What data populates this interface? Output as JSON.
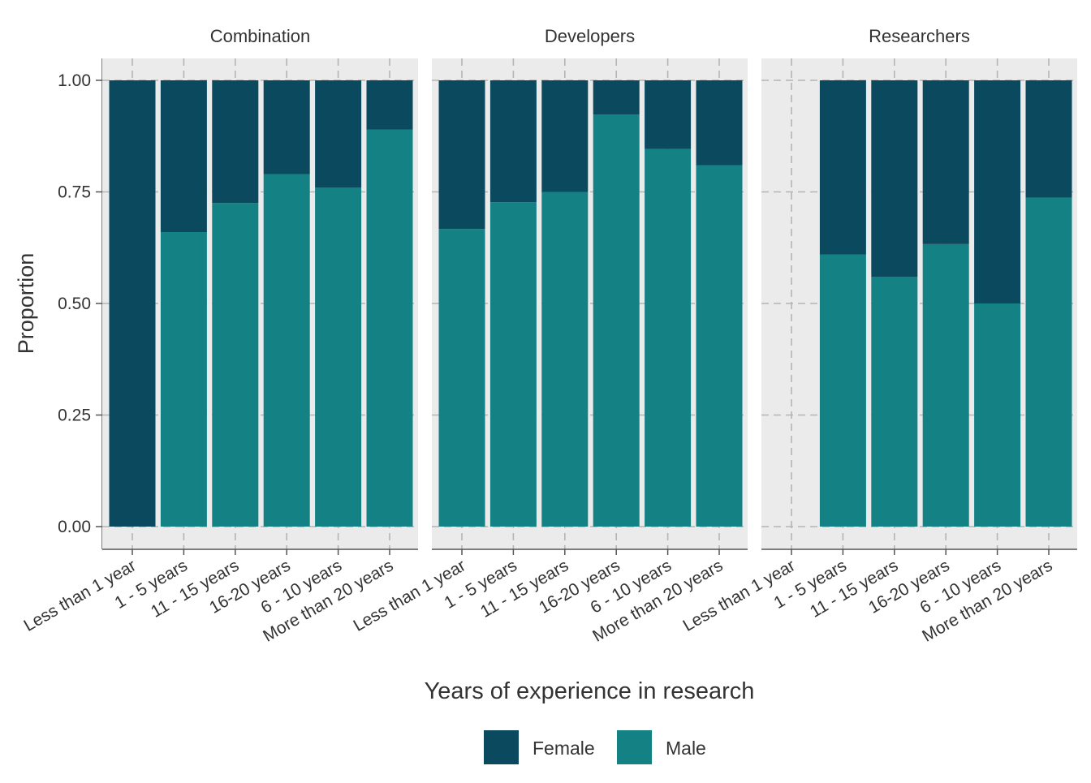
{
  "chart_data": {
    "type": "bar",
    "stacked": true,
    "ylabel": "Proportion",
    "xlabel": "Years of experience in research",
    "ylim": [
      0,
      1
    ],
    "yticks": [
      "0.00",
      "0.25",
      "0.50",
      "0.75",
      "1.00"
    ],
    "ytick_values": [
      0,
      0.25,
      0.5,
      0.75,
      1.0
    ],
    "grid": true,
    "legend_position": "bottom",
    "categories": [
      "Less than 1 year",
      "1 - 5 years",
      "11 - 15 years",
      "16-20 years",
      "6 - 10 years",
      "More than 20 years"
    ],
    "legend": [
      {
        "name": "Female",
        "color": "#0b4a5e"
      },
      {
        "name": "Male",
        "color": "#148184"
      }
    ],
    "panels": [
      {
        "title": "Combination",
        "series": [
          {
            "name": "Male",
            "values": [
              0.0,
              0.66,
              0.725,
              0.79,
              0.76,
              0.89
            ]
          },
          {
            "name": "Female",
            "values": [
              1.0,
              0.34,
              0.275,
              0.21,
              0.24,
              0.11
            ]
          }
        ]
      },
      {
        "title": "Developers",
        "series": [
          {
            "name": "Male",
            "values": [
              0.667,
              0.727,
              0.75,
              0.923,
              0.846,
              0.81
            ]
          },
          {
            "name": "Female",
            "values": [
              0.333,
              0.273,
              0.25,
              0.077,
              0.154,
              0.19
            ]
          }
        ]
      },
      {
        "title": "Researchers",
        "series": [
          {
            "name": "Male",
            "values": [
              null,
              0.61,
              0.56,
              0.633,
              0.5,
              0.737
            ]
          },
          {
            "name": "Female",
            "values": [
              null,
              0.39,
              0.44,
              0.367,
              0.5,
              0.263
            ]
          }
        ]
      }
    ]
  }
}
